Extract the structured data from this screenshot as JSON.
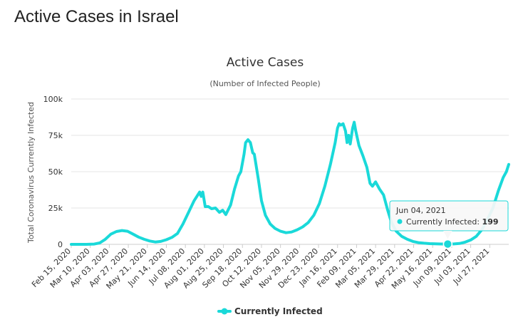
{
  "page": {
    "title": "Active Cases in Israel"
  },
  "chart_data": {
    "type": "line",
    "title": "Active Cases",
    "subtitle": "(Number of Infected People)",
    "ylabel": "Total Coronavirus Currently Infected",
    "xlabel": "",
    "ylim": [
      0,
      100000
    ],
    "y_ticks": [
      0,
      25000,
      50000,
      75000,
      100000
    ],
    "y_tick_labels": [
      "0",
      "25k",
      "50k",
      "75k",
      "100k"
    ],
    "x_range": [
      "2020-02-15",
      "2021-08-20"
    ],
    "x_tick_labels": [
      "Feb 15, 2020",
      "Mar 10, 2020",
      "Apr 03, 2020",
      "Apr 27, 2020",
      "May 21, 2020",
      "Jun 14, 2020",
      "Jul 08, 2020",
      "Aug 01, 2020",
      "Aug 25, 2020",
      "Sep 18, 2020",
      "Oct 12, 2020",
      "Nov 05, 2020",
      "Nov 29, 2020",
      "Dec 23, 2020",
      "Jan 16, 2021",
      "Feb 09, 2021",
      "Mar 05, 2021",
      "Mar 29, 2021",
      "Apr 22, 2021",
      "May 16, 2021",
      "Jun 09, 2021",
      "Jul 03, 2021",
      "Jul 27, 2021"
    ],
    "x_tick_dates": [
      "2020-02-15",
      "2020-03-10",
      "2020-04-03",
      "2020-04-27",
      "2020-05-21",
      "2020-06-14",
      "2020-07-08",
      "2020-08-01",
      "2020-08-25",
      "2020-09-18",
      "2020-10-12",
      "2020-11-05",
      "2020-11-29",
      "2020-12-23",
      "2021-01-16",
      "2021-02-09",
      "2021-03-05",
      "2021-03-29",
      "2021-04-22",
      "2021-05-16",
      "2021-06-09",
      "2021-07-03",
      "2021-07-27"
    ],
    "grid": true,
    "legend_position": "bottom-center",
    "series": [
      {
        "name": "Currently Infected",
        "color": "#1ad9d9",
        "points": [
          [
            "2020-02-15",
            0
          ],
          [
            "2020-03-05",
            20
          ],
          [
            "2020-03-15",
            200
          ],
          [
            "2020-03-22",
            1000
          ],
          [
            "2020-03-29",
            3500
          ],
          [
            "2020-04-05",
            7000
          ],
          [
            "2020-04-12",
            8800
          ],
          [
            "2020-04-19",
            9500
          ],
          [
            "2020-04-26",
            9000
          ],
          [
            "2020-05-03",
            7000
          ],
          [
            "2020-05-10",
            5000
          ],
          [
            "2020-05-17",
            3500
          ],
          [
            "2020-05-24",
            2300
          ],
          [
            "2020-05-31",
            1600
          ],
          [
            "2020-06-07",
            2000
          ],
          [
            "2020-06-14",
            3200
          ],
          [
            "2020-06-21",
            4800
          ],
          [
            "2020-06-28",
            7500
          ],
          [
            "2020-07-05",
            14000
          ],
          [
            "2020-07-12",
            22000
          ],
          [
            "2020-07-19",
            30000
          ],
          [
            "2020-07-26",
            36000
          ],
          [
            "2020-07-28",
            33000
          ],
          [
            "2020-07-30",
            36000
          ],
          [
            "2020-08-02",
            26000
          ],
          [
            "2020-08-06",
            26000
          ],
          [
            "2020-08-10",
            24500
          ],
          [
            "2020-08-15",
            25000
          ],
          [
            "2020-08-20",
            22000
          ],
          [
            "2020-08-24",
            23500
          ],
          [
            "2020-08-28",
            20500
          ],
          [
            "2020-09-03",
            27000
          ],
          [
            "2020-09-08",
            38000
          ],
          [
            "2020-09-13",
            47000
          ],
          [
            "2020-09-16",
            50000
          ],
          [
            "2020-09-20",
            62000
          ],
          [
            "2020-09-22",
            70000
          ],
          [
            "2020-09-25",
            72000
          ],
          [
            "2020-09-28",
            70000
          ],
          [
            "2020-10-01",
            63000
          ],
          [
            "2020-10-03",
            62000
          ],
          [
            "2020-10-08",
            45000
          ],
          [
            "2020-10-12",
            30000
          ],
          [
            "2020-10-17",
            20000
          ],
          [
            "2020-10-23",
            14000
          ],
          [
            "2020-10-29",
            11000
          ],
          [
            "2020-11-05",
            9000
          ],
          [
            "2020-11-12",
            8000
          ],
          [
            "2020-11-19",
            8500
          ],
          [
            "2020-11-26",
            10000
          ],
          [
            "2020-12-03",
            12000
          ],
          [
            "2020-12-10",
            15000
          ],
          [
            "2020-12-17",
            20000
          ],
          [
            "2020-12-24",
            28000
          ],
          [
            "2020-12-31",
            40000
          ],
          [
            "2021-01-07",
            55000
          ],
          [
            "2021-01-13",
            70000
          ],
          [
            "2021-01-16",
            80000
          ],
          [
            "2021-01-18",
            83000
          ],
          [
            "2021-01-20",
            82000
          ],
          [
            "2021-01-23",
            83000
          ],
          [
            "2021-01-26",
            78000
          ],
          [
            "2021-01-28",
            70000
          ],
          [
            "2021-01-30",
            75000
          ],
          [
            "2021-02-01",
            69000
          ],
          [
            "2021-02-04",
            80000
          ],
          [
            "2021-02-06",
            84000
          ],
          [
            "2021-02-08",
            78000
          ],
          [
            "2021-02-12",
            68000
          ],
          [
            "2021-02-17",
            61000
          ],
          [
            "2021-02-22",
            53000
          ],
          [
            "2021-02-26",
            42000
          ],
          [
            "2021-03-01",
            40000
          ],
          [
            "2021-03-05",
            43000
          ],
          [
            "2021-03-10",
            38000
          ],
          [
            "2021-03-15",
            34000
          ],
          [
            "2021-03-20",
            24000
          ],
          [
            "2021-03-25",
            15000
          ],
          [
            "2021-03-31",
            9000
          ],
          [
            "2021-04-07",
            5500
          ],
          [
            "2021-04-14",
            3500
          ],
          [
            "2021-04-21",
            2000
          ],
          [
            "2021-04-28",
            1200
          ],
          [
            "2021-05-05",
            800
          ],
          [
            "2021-05-12",
            500
          ],
          [
            "2021-05-19",
            350
          ],
          [
            "2021-05-26",
            250
          ],
          [
            "2021-06-04",
            199
          ],
          [
            "2021-06-12",
            300
          ],
          [
            "2021-06-19",
            600
          ],
          [
            "2021-06-26",
            1500
          ],
          [
            "2021-07-03",
            3000
          ],
          [
            "2021-07-10",
            5500
          ],
          [
            "2021-07-17",
            10000
          ],
          [
            "2021-07-24",
            17000
          ],
          [
            "2021-07-31",
            25000
          ],
          [
            "2021-08-07",
            37000
          ],
          [
            "2021-08-13",
            46000
          ],
          [
            "2021-08-17",
            50000
          ],
          [
            "2021-08-20",
            55000
          ]
        ]
      }
    ],
    "tooltip": {
      "date_label": "Jun 04, 2021",
      "date": "2021-06-04",
      "series_label": "Currently Infected: ",
      "value_label": "199",
      "value": 199
    },
    "legend": [
      {
        "label": "Currently Infected",
        "color": "#1ad9d9"
      }
    ]
  }
}
